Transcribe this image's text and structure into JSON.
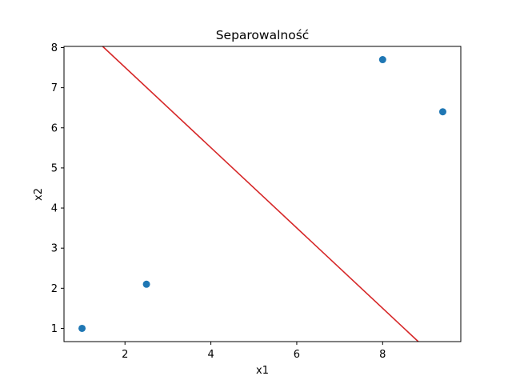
{
  "chart_data": {
    "type": "scatter",
    "title": "Separowalność",
    "xlabel": "x1",
    "ylabel": "x2",
    "xlim": [
      0.58,
      9.82
    ],
    "ylim": [
      0.67,
      8.03
    ],
    "xticks": [
      2,
      4,
      6,
      8
    ],
    "yticks": [
      1,
      2,
      3,
      4,
      5,
      6,
      7,
      8
    ],
    "grid": false,
    "points": {
      "x": [
        1.0,
        2.5,
        8.0,
        9.4
      ],
      "y": [
        1.0,
        2.1,
        7.7,
        6.4
      ],
      "color": "#1f77b4"
    },
    "line": {
      "x": [
        1.48,
        8.83
      ],
      "y": [
        8.03,
        0.67
      ],
      "color": "#d62728"
    }
  }
}
